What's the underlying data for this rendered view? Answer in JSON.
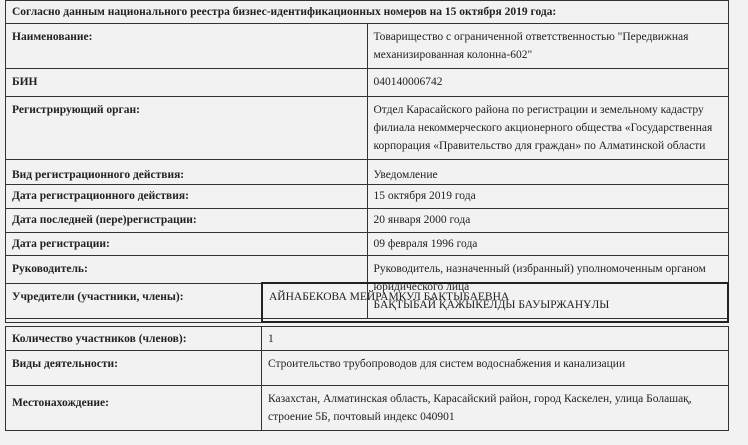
{
  "title": "Согласно данным национального реестра бизнес-идентификационных номеров на 15 октября 2019 года:",
  "rows": [
    {
      "label": "Наименование:",
      "value": "Товарищество с ограниченной ответственностью \"Передвижная механизированная колонна-602\""
    },
    {
      "label": "БИН",
      "value": "040140006742"
    },
    {
      "label": "Регистрирующий орган:",
      "value": "Отдел Карасайского района  по регистрации и земельному кадастру филиала некоммерческого акционерного общества «Государственная корпорация «Правительство для граждан» по Алматинской области"
    },
    {
      "label": "Вид регистрационного действия:",
      "value": "Уведомление"
    },
    {
      "label": "Дата регистрационного действия:",
      "value": "15 октября 2019 года"
    },
    {
      "label": "Дата последней (пере)регистрации:",
      "value": "20 января 2000 года"
    },
    {
      "label": "Дата регистрации:",
      "value": "09 февраля 1996 года"
    },
    {
      "label": "Руководитель:",
      "value": "Руководитель, назначенный (избранный) уполномоченным органом юридического лица",
      "value2": "БАҚТЫБАЙ ҚАЖЫКЕЛДЫ БАУЫРЖАНҰЛЫ"
    }
  ],
  "founders": {
    "label": "Учредители (участники, члены):",
    "value": "АЙНАБЕКОВА МЕЙРАМКУЛ БАКТЫБАЕВНА"
  },
  "rows2": [
    {
      "label": "Количество участников (членов):",
      "value": "1"
    },
    {
      "label": "Виды деятельности:",
      "value": "Строительство трубопроводов для систем водоснабжения и канализации"
    },
    {
      "label": "Местонахождение:",
      "value": "Казахстан, Алматинская область, Карасайский район, город Каскелен, улица Болашақ, строение 5Б, почтовый индекс 040901"
    }
  ]
}
